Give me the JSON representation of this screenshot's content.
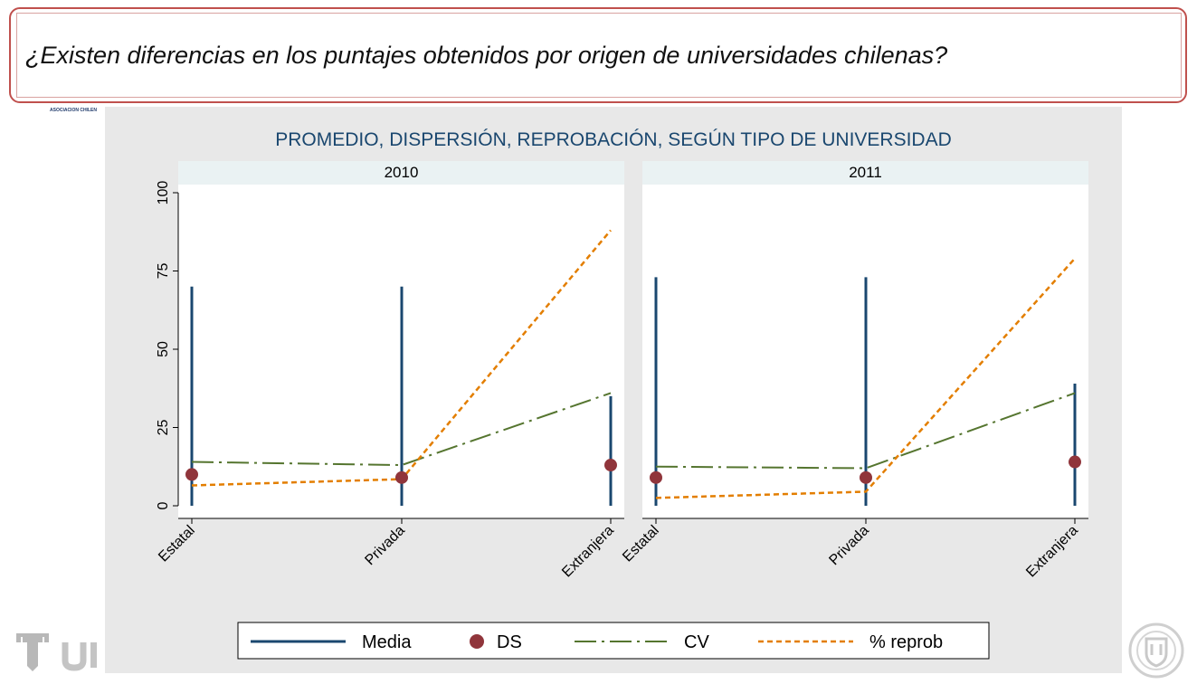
{
  "header": {
    "question": "¿Existen diferencias en los puntajes obtenidos por origen de universidades chilenas?",
    "assoc_text": "ASOCIACION CHILEN"
  },
  "chart_data": {
    "type": "line",
    "title": "PROMEDIO, DISPERSIÓN, REPROBACIÓN, SEGÚN TIPO DE UNIVERSIDAD",
    "categories": [
      "Estatal",
      "Privada",
      "Extranjera"
    ],
    "ylim": [
      0,
      100
    ],
    "yticks": [
      "0",
      "25",
      "50",
      "75",
      "100"
    ],
    "grid": false,
    "legend_position": "bottom",
    "panels": [
      {
        "label": "2010",
        "series": [
          {
            "name": "Media",
            "values": [
              70,
              70,
              35
            ]
          },
          {
            "name": "DS",
            "values": [
              10,
              9,
              13
            ]
          },
          {
            "name": "CV",
            "values": [
              14,
              13,
              36
            ]
          },
          {
            "name": "% reprob",
            "values": [
              6.5,
              8.5,
              88
            ]
          }
        ]
      },
      {
        "label": "2011",
        "series": [
          {
            "name": "Media",
            "values": [
              73,
              73,
              39
            ]
          },
          {
            "name": "DS",
            "values": [
              9,
              9,
              14
            ]
          },
          {
            "name": "CV",
            "values": [
              12.5,
              12,
              36
            ]
          },
          {
            "name": "% reprob",
            "values": [
              2.5,
              4.5,
              79
            ]
          }
        ]
      }
    ],
    "legend": [
      "Media",
      "DS",
      "CV",
      "% reprob"
    ],
    "colors": {
      "Media": "#1a476f",
      "DS": "#90353b",
      "CV": "#55752f",
      "% reprob": "#e37e00",
      "title": "#1a476f",
      "panel_bg": "#e8e8e8",
      "strip_bg": "#eaf2f3"
    }
  }
}
